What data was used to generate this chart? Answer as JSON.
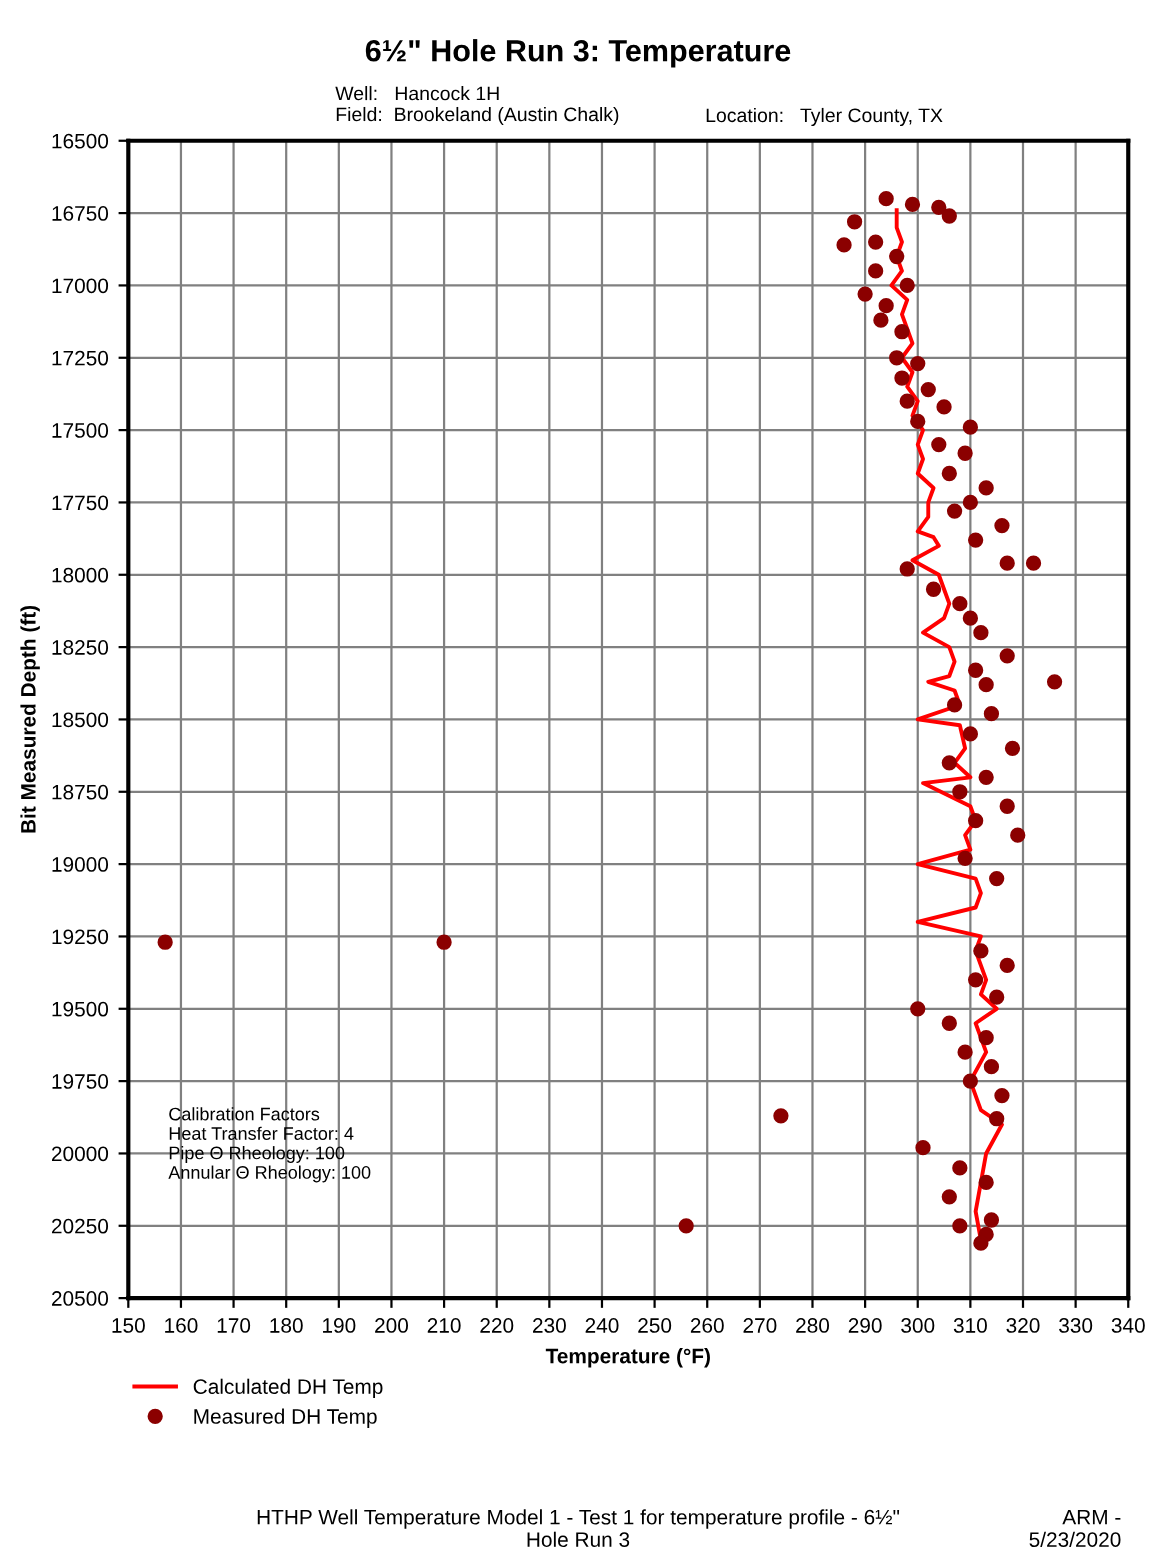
{
  "chart_data": {
    "type": "line",
    "title": "6½\" Hole Run 3: Temperature",
    "subtitle": "Well:   Hancock 1H\nField:  Brookeland (Austin Chalk)\nLocation:   Tyler County, TX",
    "xlabel": "Temperature (°F)",
    "ylabel": "Bit Measured Depth (ft)",
    "xlim": [
      150,
      340
    ],
    "xticks": [
      150,
      160,
      170,
      180,
      190,
      200,
      210,
      220,
      230,
      240,
      250,
      260,
      270,
      280,
      290,
      300,
      310,
      320,
      330,
      340
    ],
    "ylim": [
      20500,
      16500
    ],
    "yticks": [
      16500,
      16750,
      17000,
      17250,
      17500,
      17750,
      18000,
      18250,
      18500,
      18750,
      19000,
      19250,
      19500,
      19750,
      20000,
      20250,
      20500
    ],
    "grid": true,
    "legend": "bottom left",
    "annotations": [
      "Calibration Factors\nHeat Transfer Factor: 4\nPipe Θ Rheology: 100\nAnnular Θ Rheology: 100",
      "HTHP Well Temperature Model 1 - Test 1 for temperature profile - 6½\"\nHole Run 3",
      "ARM -\n5/23/2020"
    ],
    "series": [
      {
        "name": "Calculated DH Temp",
        "color": "#ff0000",
        "marker": "none",
        "line_style": "solid",
        "x": [
          296,
          296,
          297,
          296,
          297,
          295,
          298,
          297,
          298,
          299,
          297,
          299,
          298,
          300,
          299,
          301,
          300,
          301,
          300,
          303,
          302,
          302,
          300,
          303,
          304,
          299,
          304,
          305,
          306,
          305,
          301,
          306,
          307,
          306,
          302,
          307,
          308,
          300,
          308,
          309,
          307,
          310,
          301,
          310,
          311,
          309,
          310,
          300,
          311,
          312,
          311,
          300,
          312,
          311,
          313,
          312,
          315,
          311,
          313,
          310,
          312,
          316,
          313,
          312,
          311,
          312
        ],
        "values": [
          16740,
          16800,
          16850,
          16900,
          16950,
          17000,
          17050,
          17100,
          17150,
          17200,
          17250,
          17300,
          17350,
          17400,
          17450,
          17500,
          17550,
          17600,
          17650,
          17700,
          17750,
          17800,
          17850,
          17870,
          17900,
          17950,
          18000,
          18050,
          18100,
          18150,
          18200,
          18250,
          18300,
          18350,
          18370,
          18400,
          18450,
          18500,
          18520,
          18600,
          18650,
          18700,
          18720,
          18800,
          18850,
          18900,
          18950,
          19000,
          19050,
          19100,
          19150,
          19200,
          19250,
          19300,
          19400,
          19450,
          19500,
          19550,
          19650,
          19750,
          19850,
          19900,
          20000,
          20100,
          20200,
          20300
        ]
      },
      {
        "name": "Measured DH Temp",
        "type": "scatter",
        "color": "#8b0000",
        "marker": "circle",
        "x": [
          294,
          299,
          304,
          306,
          288,
          292,
          286,
          296,
          292,
          298,
          290,
          294,
          293,
          297,
          296,
          300,
          297,
          302,
          298,
          305,
          300,
          310,
          304,
          309,
          306,
          313,
          310,
          307,
          316,
          311,
          317,
          322,
          298,
          303,
          308,
          310,
          312,
          317,
          311,
          326,
          313,
          307,
          314,
          310,
          318,
          306,
          313,
          308,
          317,
          311,
          319,
          309,
          315,
          157,
          210,
          312,
          317,
          311,
          315,
          300,
          306,
          313,
          309,
          314,
          310,
          316,
          274,
          315,
          301,
          308,
          313,
          306,
          314,
          256,
          308,
          313,
          312
        ],
        "values": [
          16700,
          16720,
          16730,
          16760,
          16780,
          16850,
          16860,
          16900,
          16950,
          17000,
          17030,
          17070,
          17120,
          17160,
          17250,
          17270,
          17320,
          17360,
          17400,
          17420,
          17470,
          17490,
          17550,
          17580,
          17650,
          17700,
          17750,
          17780,
          17830,
          17880,
          17960,
          17960,
          17980,
          18050,
          18100,
          18150,
          18200,
          18280,
          18330,
          18370,
          18380,
          18450,
          18480,
          18550,
          18600,
          18650,
          18700,
          18750,
          18800,
          18850,
          18900,
          18980,
          19050,
          19270,
          19270,
          19300,
          19350,
          19400,
          19460,
          19500,
          19550,
          19600,
          19650,
          19700,
          19750,
          19800,
          19870,
          19880,
          19980,
          20050,
          20100,
          20150,
          20230,
          20250,
          20250,
          20280,
          20310
        ]
      }
    ]
  }
}
